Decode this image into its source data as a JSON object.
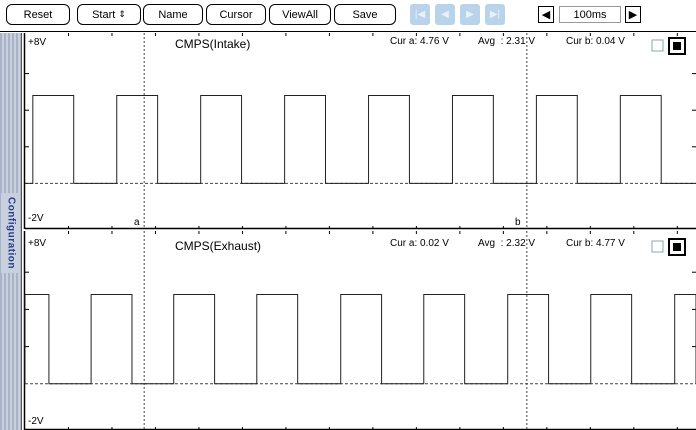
{
  "toolbar": {
    "reset_label": "Reset",
    "start_label": "Start",
    "name_label": "Name",
    "cursor_label": "Cursor",
    "viewall_label": "ViewAll",
    "save_label": "Save",
    "nav_icons": [
      "skip-first-icon",
      "step-back-icon",
      "step-forward-icon",
      "skip-last-icon"
    ],
    "timebase": "100ms"
  },
  "sidebar": {
    "label": "Configuration"
  },
  "chart_data": [
    {
      "type": "line",
      "title": "CMPS(Intake)",
      "y_top_label": "+8V",
      "y_bottom_label": "-2V",
      "ylim": [
        -2,
        8
      ],
      "xlim_ms": [
        0,
        1543
      ],
      "high_v": 4.8,
      "low_v": 0.0,
      "pulses_ms": [
        [
          18,
          112
        ],
        [
          211,
          305
        ],
        [
          404,
          498
        ],
        [
          597,
          691
        ],
        [
          790,
          884
        ],
        [
          983,
          1077
        ],
        [
          1176,
          1270
        ],
        [
          1369,
          1463
        ]
      ],
      "cursor_a_ms": 274,
      "cursor_b_ms": 1154,
      "cursor_a_label": "a",
      "cursor_b_label": "b",
      "cur_a": "Cur a: 4.76 V",
      "avg": "Avg  : 2.31 V",
      "cur_b": "Cur b: 0.04 V"
    },
    {
      "type": "line",
      "title": "CMPS(Exhaust)",
      "y_top_label": "+8V",
      "y_bottom_label": "-2V",
      "ylim": [
        -2,
        8
      ],
      "xlim_ms": [
        0,
        1543
      ],
      "high_v": 4.8,
      "low_v": 0.0,
      "pulses_ms": [
        [
          0,
          55
        ],
        [
          152,
          246
        ],
        [
          342,
          436
        ],
        [
          533,
          627
        ],
        [
          726,
          820
        ],
        [
          917,
          1011
        ],
        [
          1110,
          1204
        ],
        [
          1301,
          1395
        ],
        [
          1494,
          1543
        ]
      ],
      "cursor_a_ms": 274,
      "cursor_b_ms": 1154,
      "cur_a": "Cur a: 0.02 V",
      "avg": "Avg  : 2.32 V",
      "cur_b": "Cur b: 4.77 V"
    }
  ]
}
